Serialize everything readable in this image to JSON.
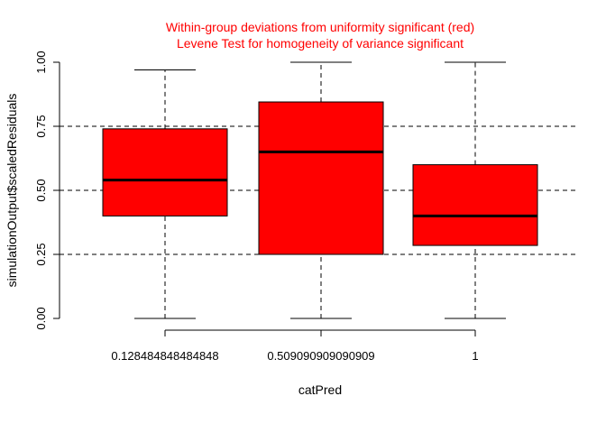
{
  "chart_data": {
    "type": "boxplot",
    "title_lines": [
      "Within-group deviations from uniformity significant (red)",
      "Levene Test for homogeneity of variance significant"
    ],
    "xlabel": "catPred",
    "ylabel": "simulationOutput$scaledResiduals",
    "ylim": [
      0,
      1
    ],
    "y_ticks": [
      0,
      0.25,
      0.5,
      0.75,
      1
    ],
    "y_tick_labels": [
      "0.00",
      "0.25",
      "0.50",
      "0.75",
      "1.00"
    ],
    "reference_lines": [
      0.25,
      0.5,
      0.75
    ],
    "box_color": "#ff0000",
    "title_color": "#ff0000",
    "categories": [
      "0.128484848484848",
      "0.509090909090909",
      "1"
    ],
    "boxes": [
      {
        "whisker_low": 0.0,
        "q1": 0.4,
        "median": 0.54,
        "q3": 0.74,
        "whisker_high": 0.97
      },
      {
        "whisker_low": 0.0,
        "q1": 0.25,
        "median": 0.65,
        "q3": 0.845,
        "whisker_high": 1.0
      },
      {
        "whisker_low": 0.0,
        "q1": 0.285,
        "median": 0.4,
        "q3": 0.6,
        "whisker_high": 1.0
      }
    ]
  }
}
